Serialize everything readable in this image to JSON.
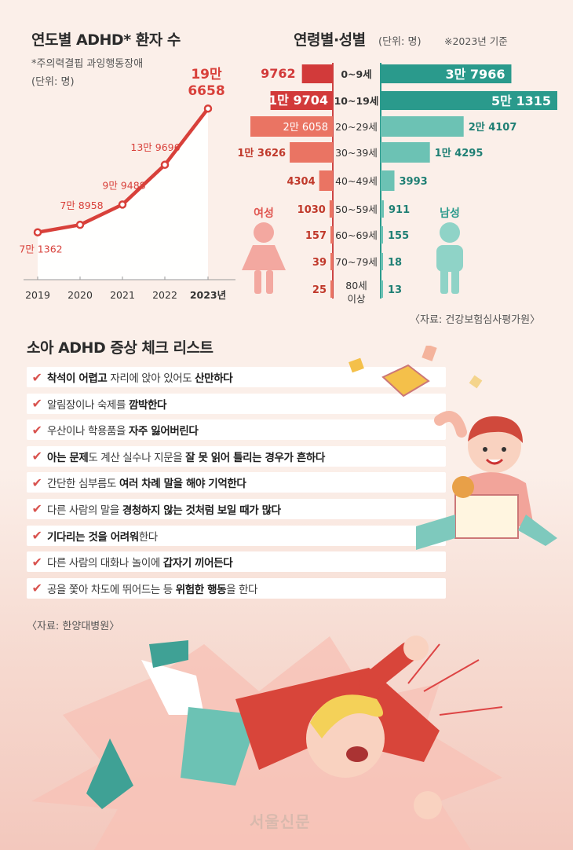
{
  "colors": {
    "red": "#d23a3a",
    "salmon": "#ea7463",
    "teal": "#2a9a8c",
    "teal_light": "#6cc2b4",
    "line": "#d8403a"
  },
  "left_chart": {
    "title": "연도별 ADHD* 환자 수",
    "note": "*주의력결핍 과잉행동장애",
    "unit": "(단위: 명)"
  },
  "right_chart": {
    "title": "연령별·성별",
    "unit": "(단위: 명)",
    "basis": "※2023년 기준",
    "female_label": "여성",
    "male_label": "남성",
    "source": "〈자료: 건강보험심사평가원〉"
  },
  "checklist": {
    "title": "소아 ADHD 증상 체크 리스트",
    "items": [
      [
        {
          "t": "착석이 어렵고",
          "b": true
        },
        {
          "t": " 자리에 앉아 있어도 ",
          "b": false
        },
        {
          "t": "산만하다",
          "b": true
        }
      ],
      [
        {
          "t": "알림장이나 숙제를 ",
          "b": false
        },
        {
          "t": "깜박한다",
          "b": true
        }
      ],
      [
        {
          "t": "우산이나 학용품을 ",
          "b": false
        },
        {
          "t": "자주 잃어버린다",
          "b": true
        }
      ],
      [
        {
          "t": "아는 문제",
          "b": true
        },
        {
          "t": "도 계산 실수나 지문을 ",
          "b": false
        },
        {
          "t": "잘 못 읽어 틀리는 경우가 흔하다",
          "b": true
        }
      ],
      [
        {
          "t": "간단한 심부름도 ",
          "b": false
        },
        {
          "t": "여러 차례 말을 해야 기억한다",
          "b": true
        }
      ],
      [
        {
          "t": "다른 사람의 말을 ",
          "b": false
        },
        {
          "t": "경청하지 않는 것처럼 보일 때가 많다",
          "b": true
        }
      ],
      [
        {
          "t": "기다리는 것을 어려워",
          "b": true
        },
        {
          "t": "한다",
          "b": false
        }
      ],
      [
        {
          "t": "다른 사람의 대화나 놀이에 ",
          "b": false
        },
        {
          "t": "갑자기 끼어든다",
          "b": true
        }
      ],
      [
        {
          "t": "공을 쫓아 차도에 뛰어드는 등 ",
          "b": false
        },
        {
          "t": "위험한 행동",
          "b": true
        },
        {
          "t": "을 한다",
          "b": false
        }
      ]
    ],
    "source": "〈자료: 한양대병원〉"
  },
  "watermark": "서울신문",
  "chart_data": [
    {
      "type": "line",
      "title": "연도별 ADHD* 환자 수",
      "x": [
        "2019",
        "2020",
        "2021",
        "2022",
        "2023년"
      ],
      "values": [
        71362,
        78958,
        99488,
        139696,
        196658
      ],
      "labels": [
        "7만 1362",
        "7만 8958",
        "9만 9488",
        "13만 9696",
        "19만 6658"
      ]
    },
    {
      "type": "bar",
      "title": "연령별·성별",
      "categories": [
        "0~9세",
        "10~19세",
        "20~29세",
        "30~39세",
        "40~49세",
        "50~59세",
        "60~69세",
        "70~79세",
        "80세 이상"
      ],
      "series": [
        {
          "name": "여성",
          "values": [
            9762,
            19704,
            26058,
            13626,
            4304,
            1030,
            157,
            39,
            25
          ],
          "labels": [
            "9762",
            "1만 9704",
            "2만 6058",
            "1만 3626",
            "4304",
            "1030",
            "157",
            "39",
            "25"
          ]
        },
        {
          "name": "남성",
          "values": [
            37966,
            51315,
            24107,
            14295,
            3993,
            911,
            155,
            18,
            13
          ],
          "labels": [
            "3만 7966",
            "5만 1315",
            "2만 4107",
            "1만 4295",
            "3993",
            "911",
            "155",
            "18",
            "13"
          ]
        }
      ]
    }
  ]
}
